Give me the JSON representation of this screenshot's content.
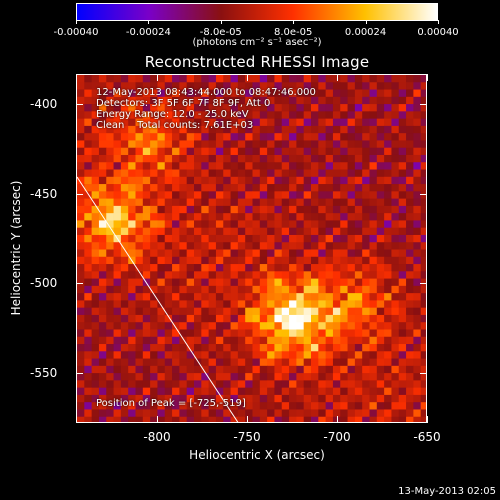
{
  "colorbar": {
    "tick_labels": [
      "-0.00040",
      "-0.00024",
      "-8.0e-05",
      "8.0e-05",
      "0.00024",
      "0.00040"
    ],
    "unit": "(photons cm⁻² s⁻¹ asec⁻²)",
    "range": [
      -0.0004,
      0.0004
    ],
    "colors": [
      "#0000ff",
      "#7a00c8",
      "#8a1010",
      "#ff3000",
      "#ffc000",
      "#ffffff"
    ]
  },
  "title": "Reconstructed RHESSI Image",
  "info_lines": [
    "12-May-2013 08:43:44.000 to 08:47:46.000",
    "Detectors: 3F 5F 6F 7F 8F 9F, Att 0",
    "Energy Range: 12.0 - 25.0 keV",
    "Clean    Total counts: 7.61E+03"
  ],
  "peak_label": "Position of Peak = [-725,-519]",
  "timestamp": "13-May-2013 02:05",
  "chart_data": {
    "type": "heatmap",
    "title": "Reconstructed RHESSI Image",
    "xlabel": "Heliocentric X (arcsec)",
    "ylabel": "Heliocentric Y (arcsec)",
    "xlim": [
      -845,
      -650
    ],
    "ylim": [
      -578,
      -383
    ],
    "x_ticks": [
      -800,
      -750,
      -700,
      -650
    ],
    "y_ticks": [
      -400,
      -450,
      -500,
      -550
    ],
    "x_tick_labels": [
      "-800",
      "-750",
      "-700",
      "-650"
    ],
    "y_tick_labels": [
      "-400",
      "-450",
      "-500",
      "-550"
    ],
    "value_range": [
      -0.0004,
      0.0004
    ],
    "peak": {
      "x": -725,
      "y": -519
    },
    "sources": [
      {
        "x": -725,
        "y": -519,
        "amplitude": 1.0
      },
      {
        "x": -825,
        "y": -465,
        "amplitude": 0.75
      },
      {
        "x": -805,
        "y": -420,
        "amplitude": 0.45
      },
      {
        "x": -690,
        "y": -510,
        "amplitude": 0.45
      }
    ],
    "limb": [
      [
        -845,
        -440
      ],
      [
        -755,
        -578
      ]
    ]
  }
}
